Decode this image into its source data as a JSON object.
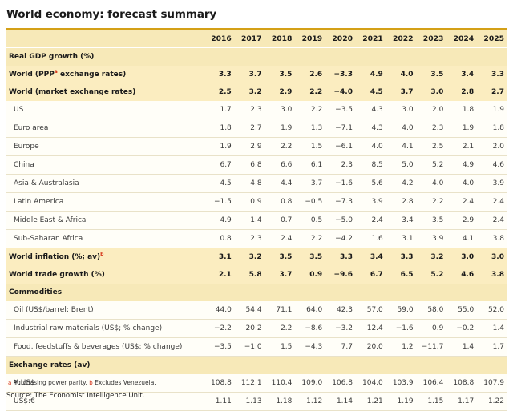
{
  "title": "World economy: forecast summary",
  "years": [
    "2016",
    "2017",
    "2018",
    "2019",
    "2020",
    "2021",
    "2022",
    "2023",
    "2024",
    "2025"
  ],
  "sections": [
    {
      "type": "section",
      "label": "Real GDP growth (%)"
    },
    {
      "type": "bold",
      "label_pre": "World (PPP",
      "label_sup": "a",
      "label_post": " exchange rates)",
      "values": [
        "3.3",
        "3.7",
        "3.5",
        "2.6",
        "−3.3",
        "4.9",
        "4.0",
        "3.5",
        "3.4",
        "3.3"
      ]
    },
    {
      "type": "bold",
      "label": "World (market exchange rates)",
      "values": [
        "2.5",
        "3.2",
        "2.9",
        "2.2",
        "−4.0",
        "4.5",
        "3.7",
        "3.0",
        "2.8",
        "2.7"
      ]
    },
    {
      "type": "sub",
      "label": "US",
      "values": [
        "1.7",
        "2.3",
        "3.0",
        "2.2",
        "−3.5",
        "4.3",
        "3.0",
        "2.0",
        "1.8",
        "1.9"
      ]
    },
    {
      "type": "sub",
      "label": "Euro area",
      "values": [
        "1.8",
        "2.7",
        "1.9",
        "1.3",
        "−7.1",
        "4.3",
        "4.0",
        "2.3",
        "1.9",
        "1.8"
      ]
    },
    {
      "type": "sub",
      "label": "Europe",
      "values": [
        "1.9",
        "2.9",
        "2.2",
        "1.5",
        "−6.1",
        "4.0",
        "4.1",
        "2.5",
        "2.1",
        "2.0"
      ]
    },
    {
      "type": "sub",
      "label": "China",
      "values": [
        "6.7",
        "6.8",
        "6.6",
        "6.1",
        "2.3",
        "8.5",
        "5.0",
        "5.2",
        "4.9",
        "4.6"
      ]
    },
    {
      "type": "sub",
      "label": "Asia & Australasia",
      "values": [
        "4.5",
        "4.8",
        "4.4",
        "3.7",
        "−1.6",
        "5.6",
        "4.2",
        "4.0",
        "4.0",
        "3.9"
      ]
    },
    {
      "type": "sub",
      "label": "Latin America",
      "values": [
        "−1.5",
        "0.9",
        "0.8",
        "−0.5",
        "−7.3",
        "3.9",
        "2.8",
        "2.2",
        "2.4",
        "2.4"
      ]
    },
    {
      "type": "sub",
      "label": "Middle East & Africa",
      "values": [
        "4.9",
        "1.4",
        "0.7",
        "0.5",
        "−5.0",
        "2.4",
        "3.4",
        "3.5",
        "2.9",
        "2.4"
      ]
    },
    {
      "type": "sub",
      "label": "Sub-Saharan Africa",
      "values": [
        "0.8",
        "2.3",
        "2.4",
        "2.2",
        "−4.2",
        "1.6",
        "3.1",
        "3.9",
        "4.1",
        "3.8"
      ]
    },
    {
      "type": "bold",
      "label_pre": "World inflation (%; av)",
      "label_sup": "b",
      "label_post": "",
      "values": [
        "3.1",
        "3.2",
        "3.5",
        "3.5",
        "3.3",
        "3.4",
        "3.3",
        "3.2",
        "3.0",
        "3.0"
      ]
    },
    {
      "type": "bold",
      "label": "World trade growth (%)",
      "values": [
        "2.1",
        "5.8",
        "3.7",
        "0.9",
        "−9.6",
        "6.7",
        "6.5",
        "5.2",
        "4.6",
        "3.8"
      ]
    },
    {
      "type": "section",
      "label": "Commodities"
    },
    {
      "type": "sub",
      "label": "Oil (US$/barrel; Brent)",
      "values": [
        "44.0",
        "54.4",
        "71.1",
        "64.0",
        "42.3",
        "57.0",
        "59.0",
        "58.0",
        "55.0",
        "52.0"
      ]
    },
    {
      "type": "sub",
      "label": "Industrial raw materials (US$; % change)",
      "values": [
        "−2.2",
        "20.2",
        "2.2",
        "−8.6",
        "−3.2",
        "12.4",
        "−1.6",
        "0.9",
        "−0.2",
        "1.4"
      ]
    },
    {
      "type": "sub",
      "label": "Food, feedstuffs & beverages (US$; % change)",
      "values": [
        "−3.5",
        "−1.0",
        "1.5",
        "−4.3",
        "7.7",
        "20.0",
        "1.2",
        "−11.7",
        "1.4",
        "1.7"
      ]
    },
    {
      "type": "section",
      "label": "Exchange rates (av)"
    },
    {
      "type": "sub",
      "label": "¥:US$",
      "values": [
        "108.8",
        "112.1",
        "110.4",
        "109.0",
        "106.8",
        "104.0",
        "103.9",
        "106.4",
        "108.8",
        "107.9"
      ]
    },
    {
      "type": "sub",
      "label": "US$:€",
      "values": [
        "1.11",
        "1.13",
        "1.18",
        "1.12",
        "1.14",
        "1.21",
        "1.19",
        "1.15",
        "1.17",
        "1.22"
      ]
    }
  ],
  "notes": {
    "a_mark": "a",
    "a_text": " Purchasing power parity. ",
    "b_mark": "b",
    "b_text": " Excludes Venezuela."
  },
  "source": "Source: The Economist Intelligence Unit."
}
